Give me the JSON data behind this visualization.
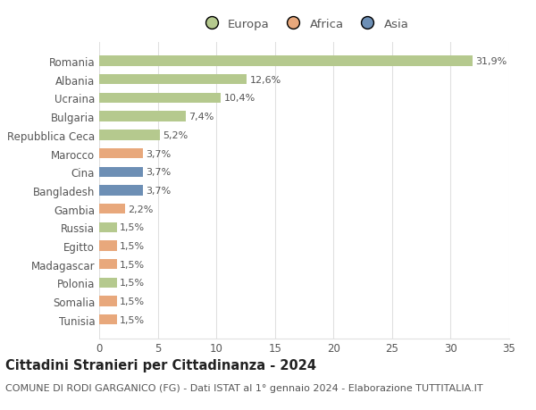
{
  "categories": [
    "Tunisia",
    "Somalia",
    "Polonia",
    "Madagascar",
    "Egitto",
    "Russia",
    "Gambia",
    "Bangladesh",
    "Cina",
    "Marocco",
    "Repubblica Ceca",
    "Bulgaria",
    "Ucraina",
    "Albania",
    "Romania"
  ],
  "values": [
    1.5,
    1.5,
    1.5,
    1.5,
    1.5,
    1.5,
    2.2,
    3.7,
    3.7,
    3.7,
    5.2,
    7.4,
    10.4,
    12.6,
    31.9
  ],
  "labels": [
    "1,5%",
    "1,5%",
    "1,5%",
    "1,5%",
    "1,5%",
    "1,5%",
    "2,2%",
    "3,7%",
    "3,7%",
    "3,7%",
    "5,2%",
    "7,4%",
    "10,4%",
    "12,6%",
    "31,9%"
  ],
  "colors": [
    "#e8a87c",
    "#e8a87c",
    "#b5c98e",
    "#e8a87c",
    "#e8a87c",
    "#b5c98e",
    "#e8a87c",
    "#6d8fb5",
    "#6d8fb5",
    "#e8a87c",
    "#b5c98e",
    "#b5c98e",
    "#b5c98e",
    "#b5c98e",
    "#b5c98e"
  ],
  "legend": [
    {
      "label": "Europa",
      "color": "#b5c98e"
    },
    {
      "label": "Africa",
      "color": "#e8a87c"
    },
    {
      "label": "Asia",
      "color": "#6d8fb5"
    }
  ],
  "title": "Cittadini Stranieri per Cittadinanza - 2024",
  "subtitle": "COMUNE DI RODI GARGANICO (FG) - Dati ISTAT al 1° gennaio 2024 - Elaborazione TUTTITALIA.IT",
  "xlim": [
    0,
    35
  ],
  "xticks": [
    0,
    5,
    10,
    15,
    20,
    25,
    30,
    35
  ],
  "background_color": "#ffffff",
  "grid_color": "#e0e0e0",
  "bar_height": 0.55,
  "title_fontsize": 10.5,
  "subtitle_fontsize": 8,
  "tick_fontsize": 8.5,
  "label_fontsize": 8,
  "legend_fontsize": 9.5
}
